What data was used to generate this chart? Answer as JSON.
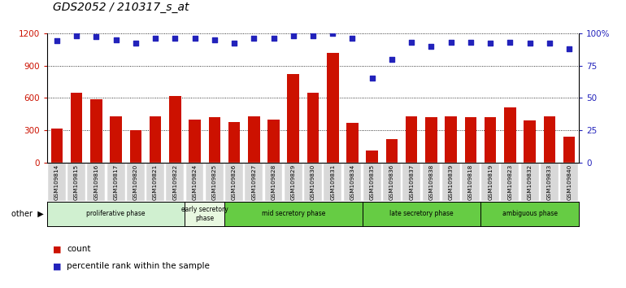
{
  "title": "GDS2052 / 210317_s_at",
  "categories": [
    "GSM109814",
    "GSM109815",
    "GSM109816",
    "GSM109817",
    "GSM109820",
    "GSM109821",
    "GSM109822",
    "GSM109824",
    "GSM109825",
    "GSM109826",
    "GSM109827",
    "GSM109828",
    "GSM109829",
    "GSM109830",
    "GSM109831",
    "GSM109834",
    "GSM109835",
    "GSM109836",
    "GSM109837",
    "GSM109838",
    "GSM109839",
    "GSM109818",
    "GSM109819",
    "GSM109823",
    "GSM109832",
    "GSM109833",
    "GSM109840"
  ],
  "counts": [
    320,
    650,
    590,
    430,
    305,
    430,
    620,
    400,
    420,
    380,
    430,
    400,
    820,
    650,
    1020,
    370,
    110,
    215,
    430,
    420,
    430,
    420,
    420,
    510,
    390,
    430,
    240
  ],
  "percentiles": [
    94,
    98,
    97,
    95,
    92,
    96,
    96,
    96,
    95,
    92,
    96,
    96,
    98,
    98,
    100,
    96,
    65,
    80,
    93,
    90,
    93,
    93,
    92,
    93,
    92,
    92,
    88
  ],
  "phases": [
    {
      "label": "proliferative phase",
      "start": 0,
      "end": 7,
      "color": "#d0f0d0"
    },
    {
      "label": "early secretory\nphase",
      "start": 7,
      "end": 9,
      "color": "#e8f8e0"
    },
    {
      "label": "mid secretory phase",
      "start": 9,
      "end": 16,
      "color": "#66cc44"
    },
    {
      "label": "late secretory phase",
      "start": 16,
      "end": 22,
      "color": "#66cc44"
    },
    {
      "label": "ambiguous phase",
      "start": 22,
      "end": 27,
      "color": "#66cc44"
    }
  ],
  "bar_color": "#cc1100",
  "dot_color": "#2222bb",
  "left_axis_color": "#cc1100",
  "right_axis_color": "#2222bb",
  "ylim_left": [
    0,
    1200
  ],
  "ylim_right": [
    0,
    100
  ],
  "yticks_left": [
    0,
    300,
    600,
    900,
    1200
  ],
  "yticks_right": [
    0,
    25,
    50,
    75,
    100
  ],
  "xtick_bg": "#d8d8d8",
  "phase_outline_color": "#000000",
  "title_fontsize": 10
}
